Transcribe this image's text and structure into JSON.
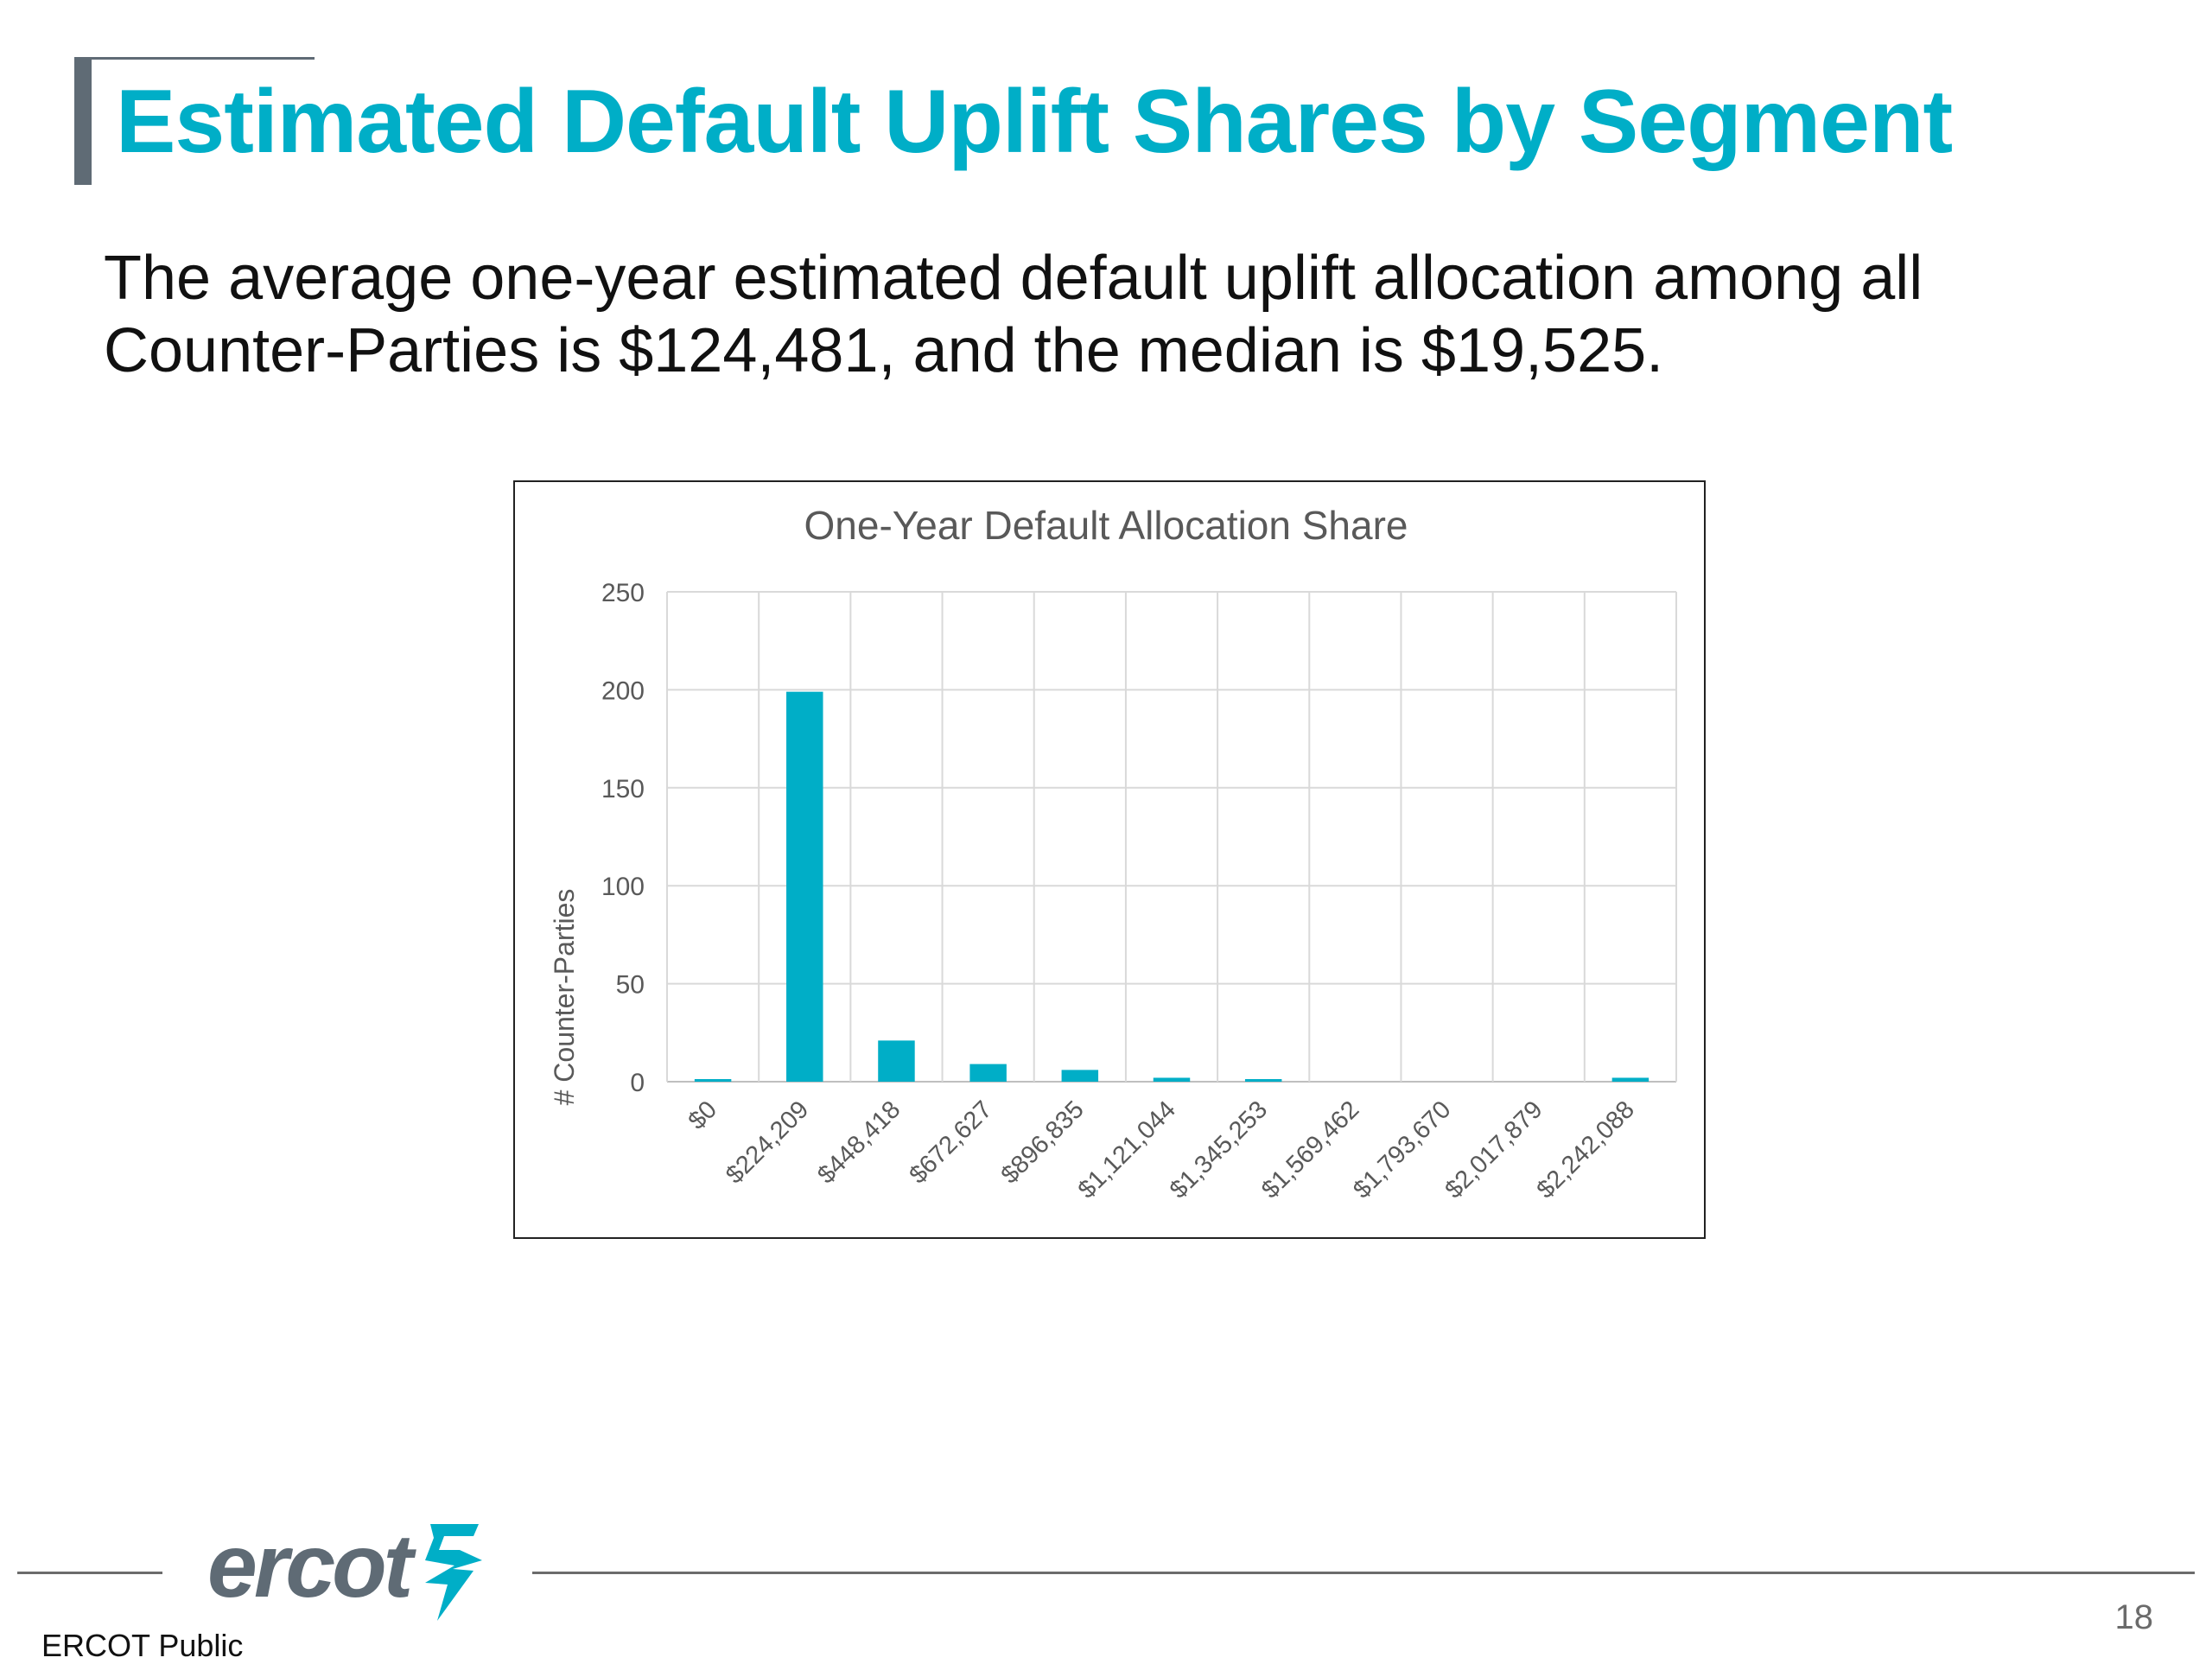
{
  "slide": {
    "title": "Estimated Default Uplift Shares by Segment",
    "body_line1": "The average one-year estimated default uplift allocation among all",
    "body_line2": "Counter-Parties is $124,481, and the median is $19,525."
  },
  "chart_data": {
    "type": "bar",
    "title": "One-Year Default Allocation Share",
    "xlabel": "",
    "ylabel": "# Counter-Parties",
    "ylim": [
      0,
      250
    ],
    "yticks": [
      0,
      50,
      100,
      150,
      200,
      250
    ],
    "grid": true,
    "legend": "none",
    "categories": [
      "$0",
      "$224,209",
      "$448,418",
      "$672,627",
      "$896,835",
      "$1,121,044",
      "$1,345,253",
      "$1,569,462",
      "$1,793,670",
      "$2,017,879",
      "$2,242,088"
    ],
    "values": [
      1,
      199,
      21,
      9,
      6,
      2,
      1,
      0,
      0,
      0,
      2
    ],
    "bar_color": "#00aec7"
  },
  "footer": {
    "label": "ERCOT Public",
    "page_number": "18",
    "logo_text": "ercot",
    "logo_icon": "ercot-bolt-icon"
  },
  "colors": {
    "title": "#00aec7",
    "accent_bar": "#5f6b75",
    "logo": "#5f6b75",
    "logo_icon": "#00aec7"
  }
}
